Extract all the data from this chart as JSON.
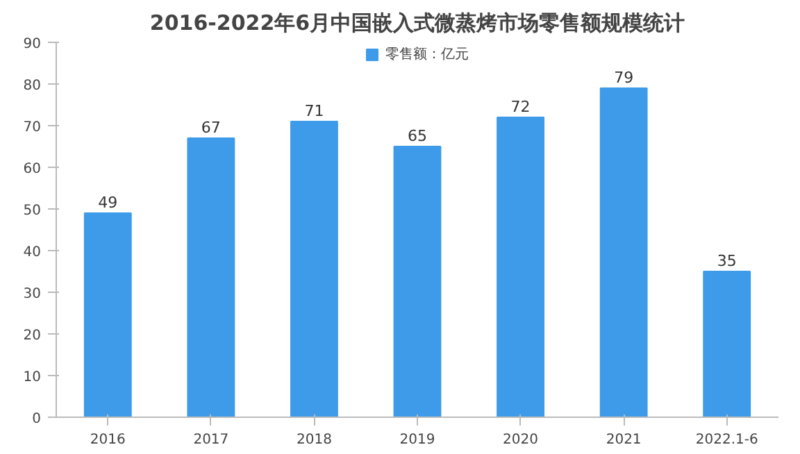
{
  "chart_data": {
    "type": "bar",
    "title": "2016-2022年6月中国嵌入式微蒸烤市场零售额规模统计",
    "categories": [
      "2016",
      "2017",
      "2018",
      "2019",
      "2020",
      "2021",
      "2022.1-6"
    ],
    "series": [
      {
        "name": "零售额：亿元",
        "color": "#3d9be9",
        "values": [
          49,
          67,
          71,
          65,
          72,
          79,
          35
        ]
      }
    ],
    "ylim": [
      0,
      90
    ],
    "yticks": [
      0,
      10,
      20,
      30,
      40,
      50,
      60,
      70,
      80,
      90
    ],
    "grid": false,
    "legend": "top",
    "data_labels": true
  }
}
